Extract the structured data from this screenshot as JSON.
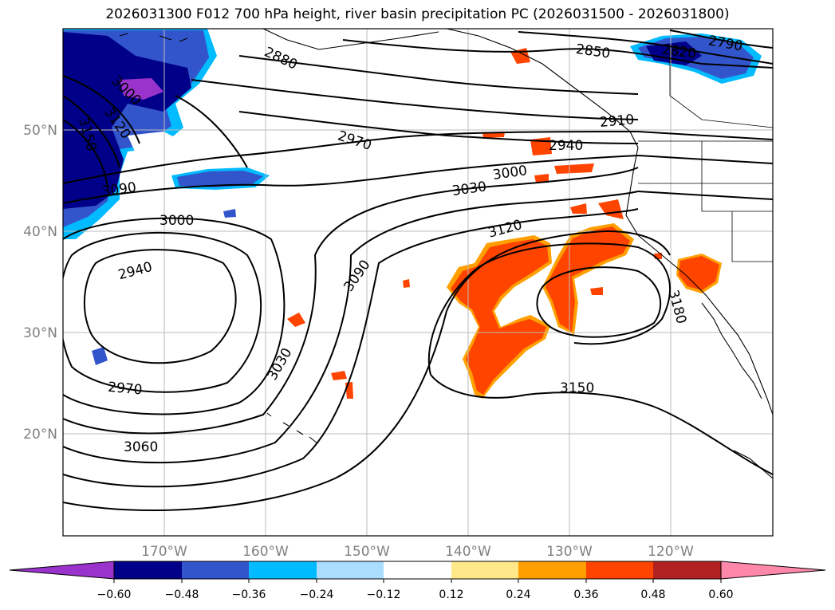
{
  "title": "2026031300 F012 700 hPa height, river basin precipitation PC (2026031500 - 2026031800)",
  "lat_labels": [
    "50°N",
    "40°N",
    "30°N",
    "20°N"
  ],
  "lon_labels": [
    "170°W",
    "160°W",
    "150°W",
    "140°W",
    "130°W",
    "120°W"
  ],
  "contour_labels": [
    "2880",
    "2850",
    "2790",
    "2820",
    "3000",
    "3120",
    "3150",
    "2910",
    "2970",
    "2940",
    "3000",
    "3030",
    "3090",
    "3000",
    "3120",
    "2940",
    "3090",
    "3180",
    "3030",
    "2970",
    "3150",
    "3060"
  ],
  "colorbar": {
    "ticks": [
      "−0.60",
      "−0.48",
      "−0.36",
      "−0.24",
      "−0.12",
      "0.12",
      "0.24",
      "0.36",
      "0.48",
      "0.60"
    ],
    "colors": [
      "#9933cc",
      "#000088",
      "#3355cc",
      "#00bbff",
      "#aaddff",
      "#ffffff",
      "#ffe88a",
      "#ffa000",
      "#ff4400",
      "#b22222",
      "#ff88aa"
    ]
  }
}
